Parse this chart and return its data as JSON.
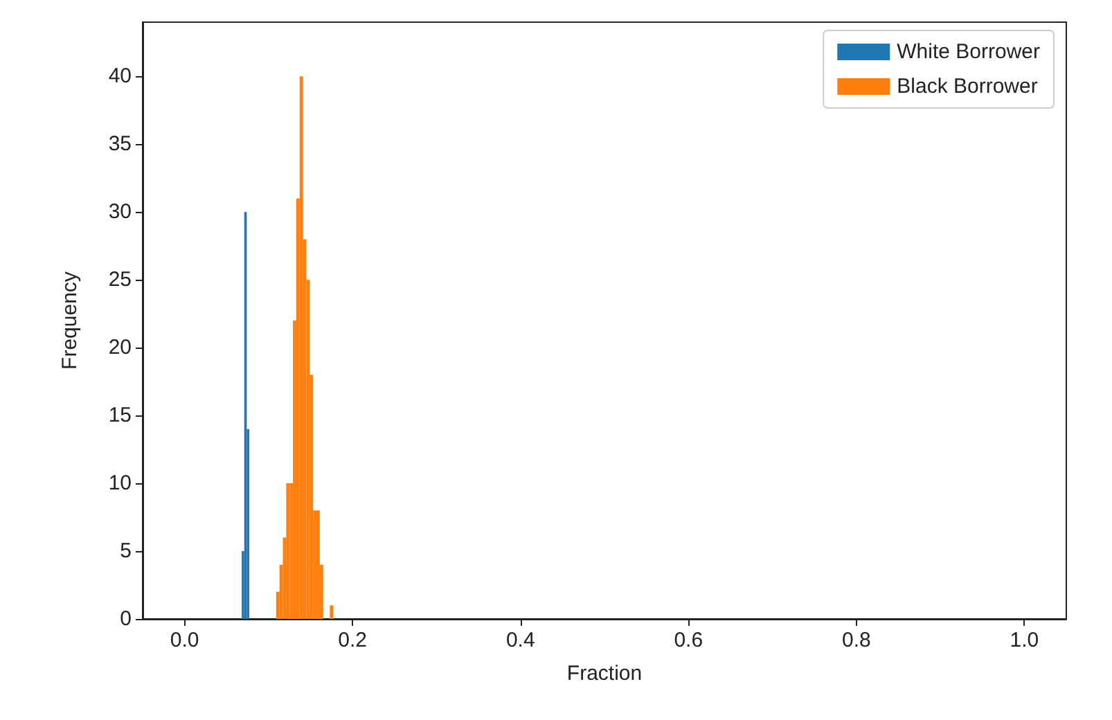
{
  "chart_data": {
    "type": "histogram",
    "xlabel": "Fraction",
    "ylabel": "Frequency",
    "bins": [
      0.068,
      0.071,
      0.074,
      0.077,
      0.109,
      0.113,
      0.117,
      0.121,
      0.125,
      0.129,
      0.133,
      0.137,
      0.141,
      0.145,
      0.149,
      0.153,
      0.157,
      0.161,
      0.165,
      0.173,
      0.177
    ],
    "series": [
      {
        "name": "White Borrower",
        "color": "#1f77b4",
        "values": [
          5,
          30,
          14,
          0,
          0,
          0,
          0,
          0,
          0,
          0,
          0,
          0,
          0,
          0,
          0,
          0,
          0,
          0,
          0,
          0
        ]
      },
      {
        "name": "Black Borrower",
        "color": "#ff7f0e",
        "values": [
          0,
          0,
          0,
          0,
          2,
          4,
          6,
          10,
          10,
          22,
          31,
          40,
          28,
          25,
          18,
          8,
          8,
          4,
          0,
          1
        ]
      }
    ],
    "xlim": [
      -0.05,
      1.05
    ],
    "ylim": [
      0,
      44
    ],
    "xticks": [
      {
        "value": 0,
        "label": "0.0"
      },
      0.2,
      0.4,
      0.6,
      0.8,
      {
        "value": 1,
        "label": "1.0"
      }
    ],
    "yticks": [
      0,
      5,
      10,
      15,
      20,
      25,
      30,
      35,
      40
    ],
    "legend": "top right"
  }
}
